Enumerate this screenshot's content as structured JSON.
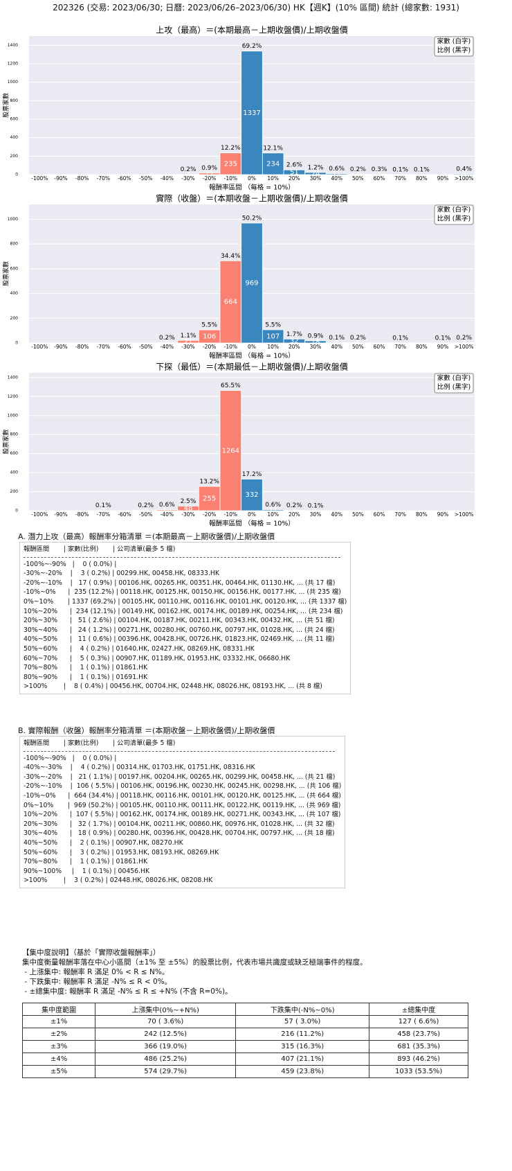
{
  "header": "202326 (交易: 2023/06/30; 日曆: 2023/06/26–2023/06/30) HK【週K】(10% 區間) 統計 (總家數: 1931)",
  "chart_data": [
    {
      "type": "bar",
      "title": "上攻（最高）＝(本期最高－上期收盤價)/上期收盤價",
      "x_label": "報酬率區間 （每格 = 10%）",
      "y_label": "股票家數",
      "legend": [
        "家數 (白字)",
        "比例 (黑字)"
      ],
      "categories": [
        "-100%",
        "-90%",
        "-80%",
        "-70%",
        "-60%",
        "-50%",
        "-40%",
        "-30%",
        "-20%",
        "-10%",
        "0%",
        "10%",
        "20%",
        "30%",
        "40%",
        "50%",
        "60%",
        "70%",
        "80%",
        "90%",
        ">100%"
      ],
      "values": [
        0,
        0,
        0,
        0,
        0,
        0,
        0,
        3,
        17,
        235,
        1337,
        234,
        51,
        24,
        11,
        4,
        5,
        1,
        1,
        0,
        8
      ],
      "percent_labels": [
        null,
        null,
        null,
        null,
        null,
        null,
        null,
        "0.2%",
        "0.9%",
        "12.2%",
        "69.2%",
        "12.1%",
        "2.6%",
        "1.2%",
        "0.6%",
        "0.2%",
        "0.3%",
        "0.1%",
        "0.1%",
        null,
        "0.4%"
      ],
      "colors": [
        "#fa8072",
        "#fa8072",
        "#fa8072",
        "#fa8072",
        "#fa8072",
        "#fa8072",
        "#fa8072",
        "#fa8072",
        "#fa8072",
        "#fa8072",
        "#3a87c0",
        "#3a87c0",
        "#3a87c0",
        "#3a87c0",
        "#3a87c0",
        "#3a87c0",
        "#3a87c0",
        "#3a87c0",
        "#3a87c0",
        "#3a87c0",
        "#3a87c0"
      ],
      "ylim": [
        0,
        1500
      ],
      "yticks": [
        0,
        200,
        400,
        600,
        800,
        1000,
        1200,
        1400
      ],
      "grid": true
    },
    {
      "type": "bar",
      "title": "實際（收盤）＝(本期收盤－上期收盤價)/上期收盤價",
      "x_label": "報酬率區間 （每格 = 10%）",
      "y_label": "股票家數",
      "legend": [
        "家數 (白字)",
        "比例 (黑字)"
      ],
      "categories": [
        "-100%",
        "-90%",
        "-80%",
        "-70%",
        "-60%",
        "-50%",
        "-40%",
        "-30%",
        "-20%",
        "-10%",
        "0%",
        "10%",
        "20%",
        "30%",
        "40%",
        "50%",
        "60%",
        "70%",
        "80%",
        "90%",
        ">100%"
      ],
      "values": [
        0,
        0,
        0,
        0,
        0,
        0,
        4,
        21,
        106,
        664,
        969,
        107,
        32,
        18,
        2,
        3,
        0,
        1,
        0,
        1,
        3
      ],
      "percent_labels": [
        null,
        null,
        null,
        null,
        null,
        null,
        "0.2%",
        "1.1%",
        "5.5%",
        "34.4%",
        "50.2%",
        "5.5%",
        "1.7%",
        "0.9%",
        "0.1%",
        "0.2%",
        null,
        "0.1%",
        null,
        "0.1%",
        "0.2%"
      ],
      "colors": [
        "#fa8072",
        "#fa8072",
        "#fa8072",
        "#fa8072",
        "#fa8072",
        "#fa8072",
        "#fa8072",
        "#fa8072",
        "#fa8072",
        "#fa8072",
        "#3a87c0",
        "#3a87c0",
        "#3a87c0",
        "#3a87c0",
        "#3a87c0",
        "#3a87c0",
        "#3a87c0",
        "#3a87c0",
        "#3a87c0",
        "#3a87c0",
        "#3a87c0"
      ],
      "ylim": [
        0,
        1120
      ],
      "yticks": [
        0,
        200,
        400,
        600,
        800,
        1000
      ],
      "grid": true
    },
    {
      "type": "bar",
      "title": "下探（最低）＝(本期最低－上期收盤價)/上期收盤價",
      "x_label": "報酬率區間 （每格 = 10%）",
      "y_label": "股票家數",
      "legend": [
        "家數 (白字)",
        "比例 (黑字)"
      ],
      "categories": [
        "-100%",
        "-90%",
        "-80%",
        "-70%",
        "-60%",
        "-50%",
        "-40%",
        "-30%",
        "-20%",
        "-10%",
        "0%",
        "10%",
        "20%",
        "30%",
        "40%",
        "50%",
        "60%",
        "70%",
        "80%",
        "90%",
        ">100%"
      ],
      "values": [
        0,
        0,
        0,
        2,
        0,
        4,
        10,
        48,
        255,
        1264,
        332,
        11,
        4,
        1,
        0,
        0,
        0,
        0,
        0,
        0,
        0
      ],
      "percent_labels": [
        null,
        null,
        null,
        "0.1%",
        null,
        "0.2%",
        "0.6%",
        "2.5%",
        "13.2%",
        "65.5%",
        "17.2%",
        "0.6%",
        "0.2%",
        "0.1%",
        null,
        null,
        null,
        null,
        null,
        null,
        null
      ],
      "colors": [
        "#fa8072",
        "#fa8072",
        "#fa8072",
        "#fa8072",
        "#fa8072",
        "#fa8072",
        "#fa8072",
        "#fa8072",
        "#fa8072",
        "#fa8072",
        "#3a87c0",
        "#3a87c0",
        "#3a87c0",
        "#3a87c0",
        "#3a87c0",
        "#3a87c0",
        "#3a87c0",
        "#3a87c0",
        "#3a87c0",
        "#3a87c0",
        "#3a87c0"
      ],
      "ylim": [
        0,
        1450
      ],
      "yticks": [
        0,
        200,
        400,
        600,
        800,
        1000,
        1200,
        1400
      ],
      "grid": true
    }
  ],
  "list_a": {
    "title": "A. 潛力上攻（最高）報酬率分箱清單 ＝(本期最高－上期收盤價)/上期收盤價",
    "header": "報酬區間       | 家數(比例)       | 公司清單(最多 5 檔)",
    "lines": [
      "-100%~-90%   |    0 ( 0.0%) |",
      "-30%~-20%    |    3 ( 0.2%) | 00299.HK, 00458.HK, 08333.HK",
      "-20%~-10%    |   17 ( 0.9%) | 00106.HK, 00265.HK, 00351.HK, 00464.HK, 01130.HK, ... (共 17 檔)",
      "-10%~0%      |  235 (12.2%) | 00118.HK, 00125.HK, 00150.HK, 00156.HK, 00177.HK, ... (共 235 檔)",
      "0%~10%       | 1337 (69.2%) | 00105.HK, 00110.HK, 00116.HK, 00101.HK, 00120.HK, ... (共 1337 檔)",
      "10%~20%      |  234 (12.1%) | 00149.HK, 00162.HK, 00174.HK, 00189.HK, 00254.HK, ... (共 234 檔)",
      "20%~30%      |   51 ( 2.6%) | 00104.HK, 00187.HK, 00211.HK, 00343.HK, 00432.HK, ... (共 51 檔)",
      "30%~40%      |   24 ( 1.2%) | 00271.HK, 00280.HK, 00760.HK, 00797.HK, 01028.HK, ... (共 24 檔)",
      "40%~50%      |   11 ( 0.6%) | 00396.HK, 00428.HK, 00726.HK, 01823.HK, 02469.HK, ... (共 11 檔)",
      "50%~60%      |    4 ( 0.2%) | 01640.HK, 02427.HK, 08269.HK, 08331.HK",
      "60%~70%      |    5 ( 0.3%) | 00907.HK, 01189.HK, 01953.HK, 03332.HK, 06680.HK",
      "70%~80%      |    1 ( 0.1%) | 01861.HK",
      "80%~90%      |    1 ( 0.1%) | 01691.HK",
      ">100%        |    8 ( 0.4%) | 00456.HK, 00704.HK, 02448.HK, 08026.HK, 08193.HK, ... (共 8 檔)"
    ]
  },
  "list_b": {
    "title": "B. 實際報酬（收盤）報酬率分箱清單 ＝(本期收盤－上期收盤價)/上期收盤價",
    "header": "報酬區間       | 家數(比例)       | 公司清單(最多 5 檔)",
    "lines": [
      "-100%~-90%   |    0 ( 0.0%) |",
      "-40%~-30%    |    4 ( 0.2%) | 00314.HK, 01703.HK, 01751.HK, 08316.HK",
      "-30%~-20%    |   21 ( 1.1%) | 00197.HK, 00204.HK, 00265.HK, 00299.HK, 00458.HK, ... (共 21 檔)",
      "-20%~-10%    |  106 ( 5.5%) | 00106.HK, 00196.HK, 00230.HK, 00245.HK, 00298.HK, ... (共 106 檔)",
      "-10%~0%      |  664 (34.4%) | 00118.HK, 00116.HK, 00101.HK, 00120.HK, 00125.HK, ... (共 664 檔)",
      "0%~10%       |  969 (50.2%) | 00105.HK, 00110.HK, 00111.HK, 00122.HK, 00119.HK, ... (共 969 檔)",
      "10%~20%      |  107 ( 5.5%) | 00162.HK, 00174.HK, 00189.HK, 00271.HK, 00343.HK, ... (共 107 檔)",
      "20%~30%      |   32 ( 1.7%) | 00104.HK, 00211.HK, 00860.HK, 00976.HK, 01028.HK, ... (共 32 檔)",
      "30%~40%      |   18 ( 0.9%) | 00280.HK, 00396.HK, 00428.HK, 00704.HK, 00797.HK, ... (共 18 檔)",
      "40%~50%      |    2 ( 0.1%) | 00907.HK, 08270.HK",
      "50%~60%      |    3 ( 0.2%) | 01953.HK, 08193.HK, 08269.HK",
      "70%~80%      |    1 ( 0.1%) | 01861.HK",
      "90%~100%     |    1 ( 0.1%) | 00456.HK",
      ">100%        |    3 ( 0.2%) | 02448.HK, 08026.HK, 08208.HK"
    ]
  },
  "notes": [
    "【集中度說明】（基於「實際收盤報酬率」）",
    "集中度衡量報酬率落在中心小區間（±1% 至 ±5%）的股票比例，代表市場共識度或缺乏極端事件的程度。",
    " - 上漲集中: 報酬率 R 滿足 0% < R ≤ N%。",
    " - 下跌集中: 報酬率 R 滿足 -N% ≤ R < 0%。",
    " - ±總集中度: 報酬率 R 滿足 -N% ≤ R ≤ +N% (不含 R=0%)。"
  ],
  "table": {
    "headers": [
      "集中度範圍",
      "上漲集中(0%~+N%)",
      "下跌集中(-N%~0%)",
      "±總集中度"
    ],
    "rows": [
      [
        "±1%",
        "70 ( 3.6%)",
        "57 ( 3.0%)",
        "127 ( 6.6%)"
      ],
      [
        "±2%",
        "242 (12.5%)",
        "216 (11.2%)",
        "458 (23.7%)"
      ],
      [
        "±3%",
        "366 (19.0%)",
        "315 (16.3%)",
        "681 (35.3%)"
      ],
      [
        "±4%",
        "486 (25.2%)",
        "407 (21.1%)",
        "893 (46.2%)"
      ],
      [
        "±5%",
        "574 (29.7%)",
        "459 (23.8%)",
        "1033 (53.5%)"
      ]
    ]
  }
}
